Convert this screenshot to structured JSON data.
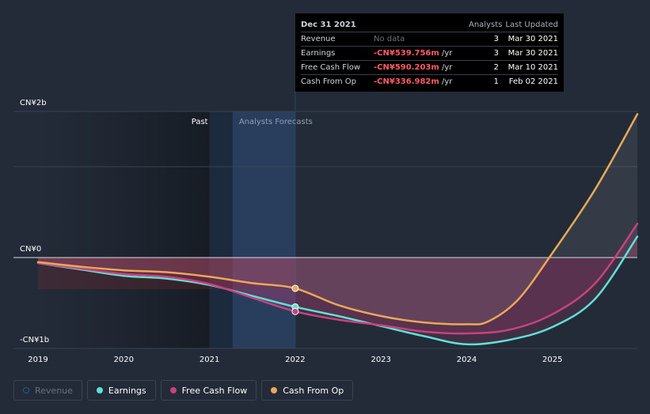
{
  "tooltip": {
    "date": "Dec 31 2021",
    "col_analysts": "Analysts",
    "col_updated": "Last Updated",
    "rows": [
      {
        "name": "Revenue",
        "value": "No data",
        "unit": "",
        "analysts": "3",
        "updated": "Mar 30 2021"
      },
      {
        "name": "Earnings",
        "value": "-CN¥539.756m",
        "unit": "/yr",
        "analysts": "3",
        "updated": "Mar 30 2021"
      },
      {
        "name": "Free Cash Flow",
        "value": "-CN¥590.203m",
        "unit": "/yr",
        "analysts": "2",
        "updated": "Mar 10 2021"
      },
      {
        "name": "Cash From Op",
        "value": "-CN¥336.982m",
        "unit": "/yr",
        "analysts": "1",
        "updated": "Feb 02 2021"
      }
    ]
  },
  "regions": {
    "past": "Past",
    "forecast": "Analysts Forecasts"
  },
  "legend": [
    {
      "label": "Revenue",
      "color": "#2a5a8a",
      "active": false
    },
    {
      "label": "Earnings",
      "color": "#5fe0d2",
      "active": true
    },
    {
      "label": "Free Cash Flow",
      "color": "#c8427e",
      "active": true
    },
    {
      "label": "Cash From Op",
      "color": "#e8a95a",
      "active": true
    }
  ],
  "chart_data": {
    "type": "line",
    "y_labels": [
      "CN¥2b",
      "CN¥0",
      "-CN¥1b"
    ],
    "ylim": [
      -1000,
      1600
    ],
    "xlim": [
      2019,
      2025.99
    ],
    "x_ticks": [
      "2019",
      "2020",
      "2021",
      "2022",
      "2023",
      "2024",
      "2025"
    ],
    "past_end": 2021.0,
    "highlight_band": [
      2021.27,
      2022.0
    ],
    "series": [
      {
        "name": "Earnings",
        "color": "#5fe0d2",
        "x": [
          2019.0,
          2019.5,
          2020.0,
          2020.5,
          2021.0,
          2021.5,
          2022.0,
          2022.5,
          2023.0,
          2023.5,
          2024.0,
          2024.5,
          2025.0,
          2025.5,
          2025.99
        ],
        "y": [
          -60,
          -130,
          -200,
          -230,
          -300,
          -420,
          -540,
          -640,
          -750,
          -860,
          -950,
          -900,
          -760,
          -450,
          230
        ]
      },
      {
        "name": "Free Cash Flow",
        "color": "#c8427e",
        "x": [
          2019.0,
          2019.5,
          2020.0,
          2020.5,
          2021.0,
          2021.5,
          2022.0,
          2022.5,
          2023.0,
          2023.5,
          2024.0,
          2024.5,
          2025.0,
          2025.5,
          2025.99
        ],
        "y": [
          -60,
          -120,
          -180,
          -210,
          -290,
          -440,
          -590,
          -680,
          -740,
          -810,
          -830,
          -790,
          -620,
          -280,
          370
        ]
      },
      {
        "name": "Cash From Op",
        "color": "#e8a95a",
        "x": [
          2019.0,
          2019.5,
          2020.0,
          2020.5,
          2021.0,
          2021.5,
          2022.0,
          2022.5,
          2023.0,
          2023.5,
          2024.0,
          2024.25,
          2024.6,
          2025.0,
          2025.5,
          2025.99
        ],
        "y": [
          -50,
          -100,
          -140,
          -160,
          -210,
          -280,
          -337,
          -520,
          -640,
          -710,
          -730,
          -700,
          -460,
          50,
          750,
          1570
        ]
      }
    ],
    "markers_at": 2022.0
  }
}
